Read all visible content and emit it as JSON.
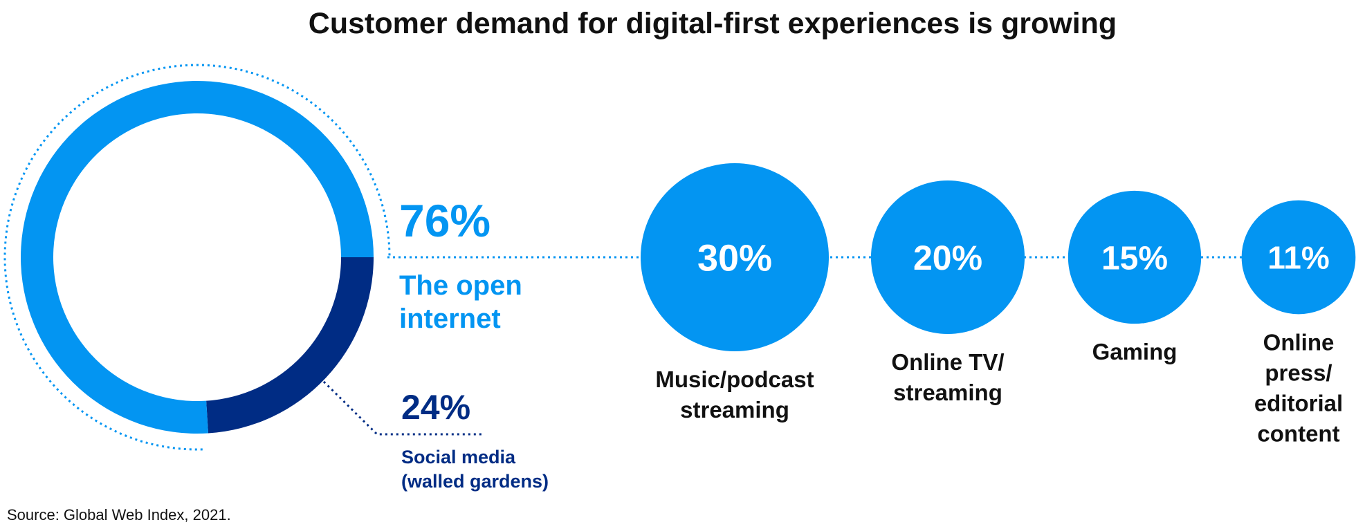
{
  "title": "Customer demand for digital-first experiences is growing",
  "source": "Source: Global Web Index, 2021.",
  "colors": {
    "open_internet": "#0395F2",
    "social_media": "#002C84",
    "bubble": "#0395F2",
    "text_dark": "#111111"
  },
  "chart_data": [
    {
      "type": "pie",
      "donut": true,
      "slices": [
        {
          "label_lines": [
            "The open",
            "internet"
          ],
          "value": 76,
          "value_label": "76%",
          "color": "#0395F2"
        },
        {
          "label_lines": [
            "Social media",
            "(walled gardens)"
          ],
          "value": 24,
          "value_label": "24%",
          "color": "#002C84"
        }
      ]
    },
    {
      "type": "bubble",
      "items": [
        {
          "value": 30,
          "value_label": "30%",
          "label_lines": [
            "Music/podcast",
            "streaming"
          ]
        },
        {
          "value": 20,
          "value_label": "20%",
          "label_lines": [
            "Online TV/",
            "streaming"
          ]
        },
        {
          "value": 15,
          "value_label": "15%",
          "label_lines": [
            "Gaming"
          ]
        },
        {
          "value": 11,
          "value_label": "11%",
          "label_lines": [
            "Online",
            "press/",
            "editorial",
            "content"
          ]
        }
      ]
    }
  ]
}
